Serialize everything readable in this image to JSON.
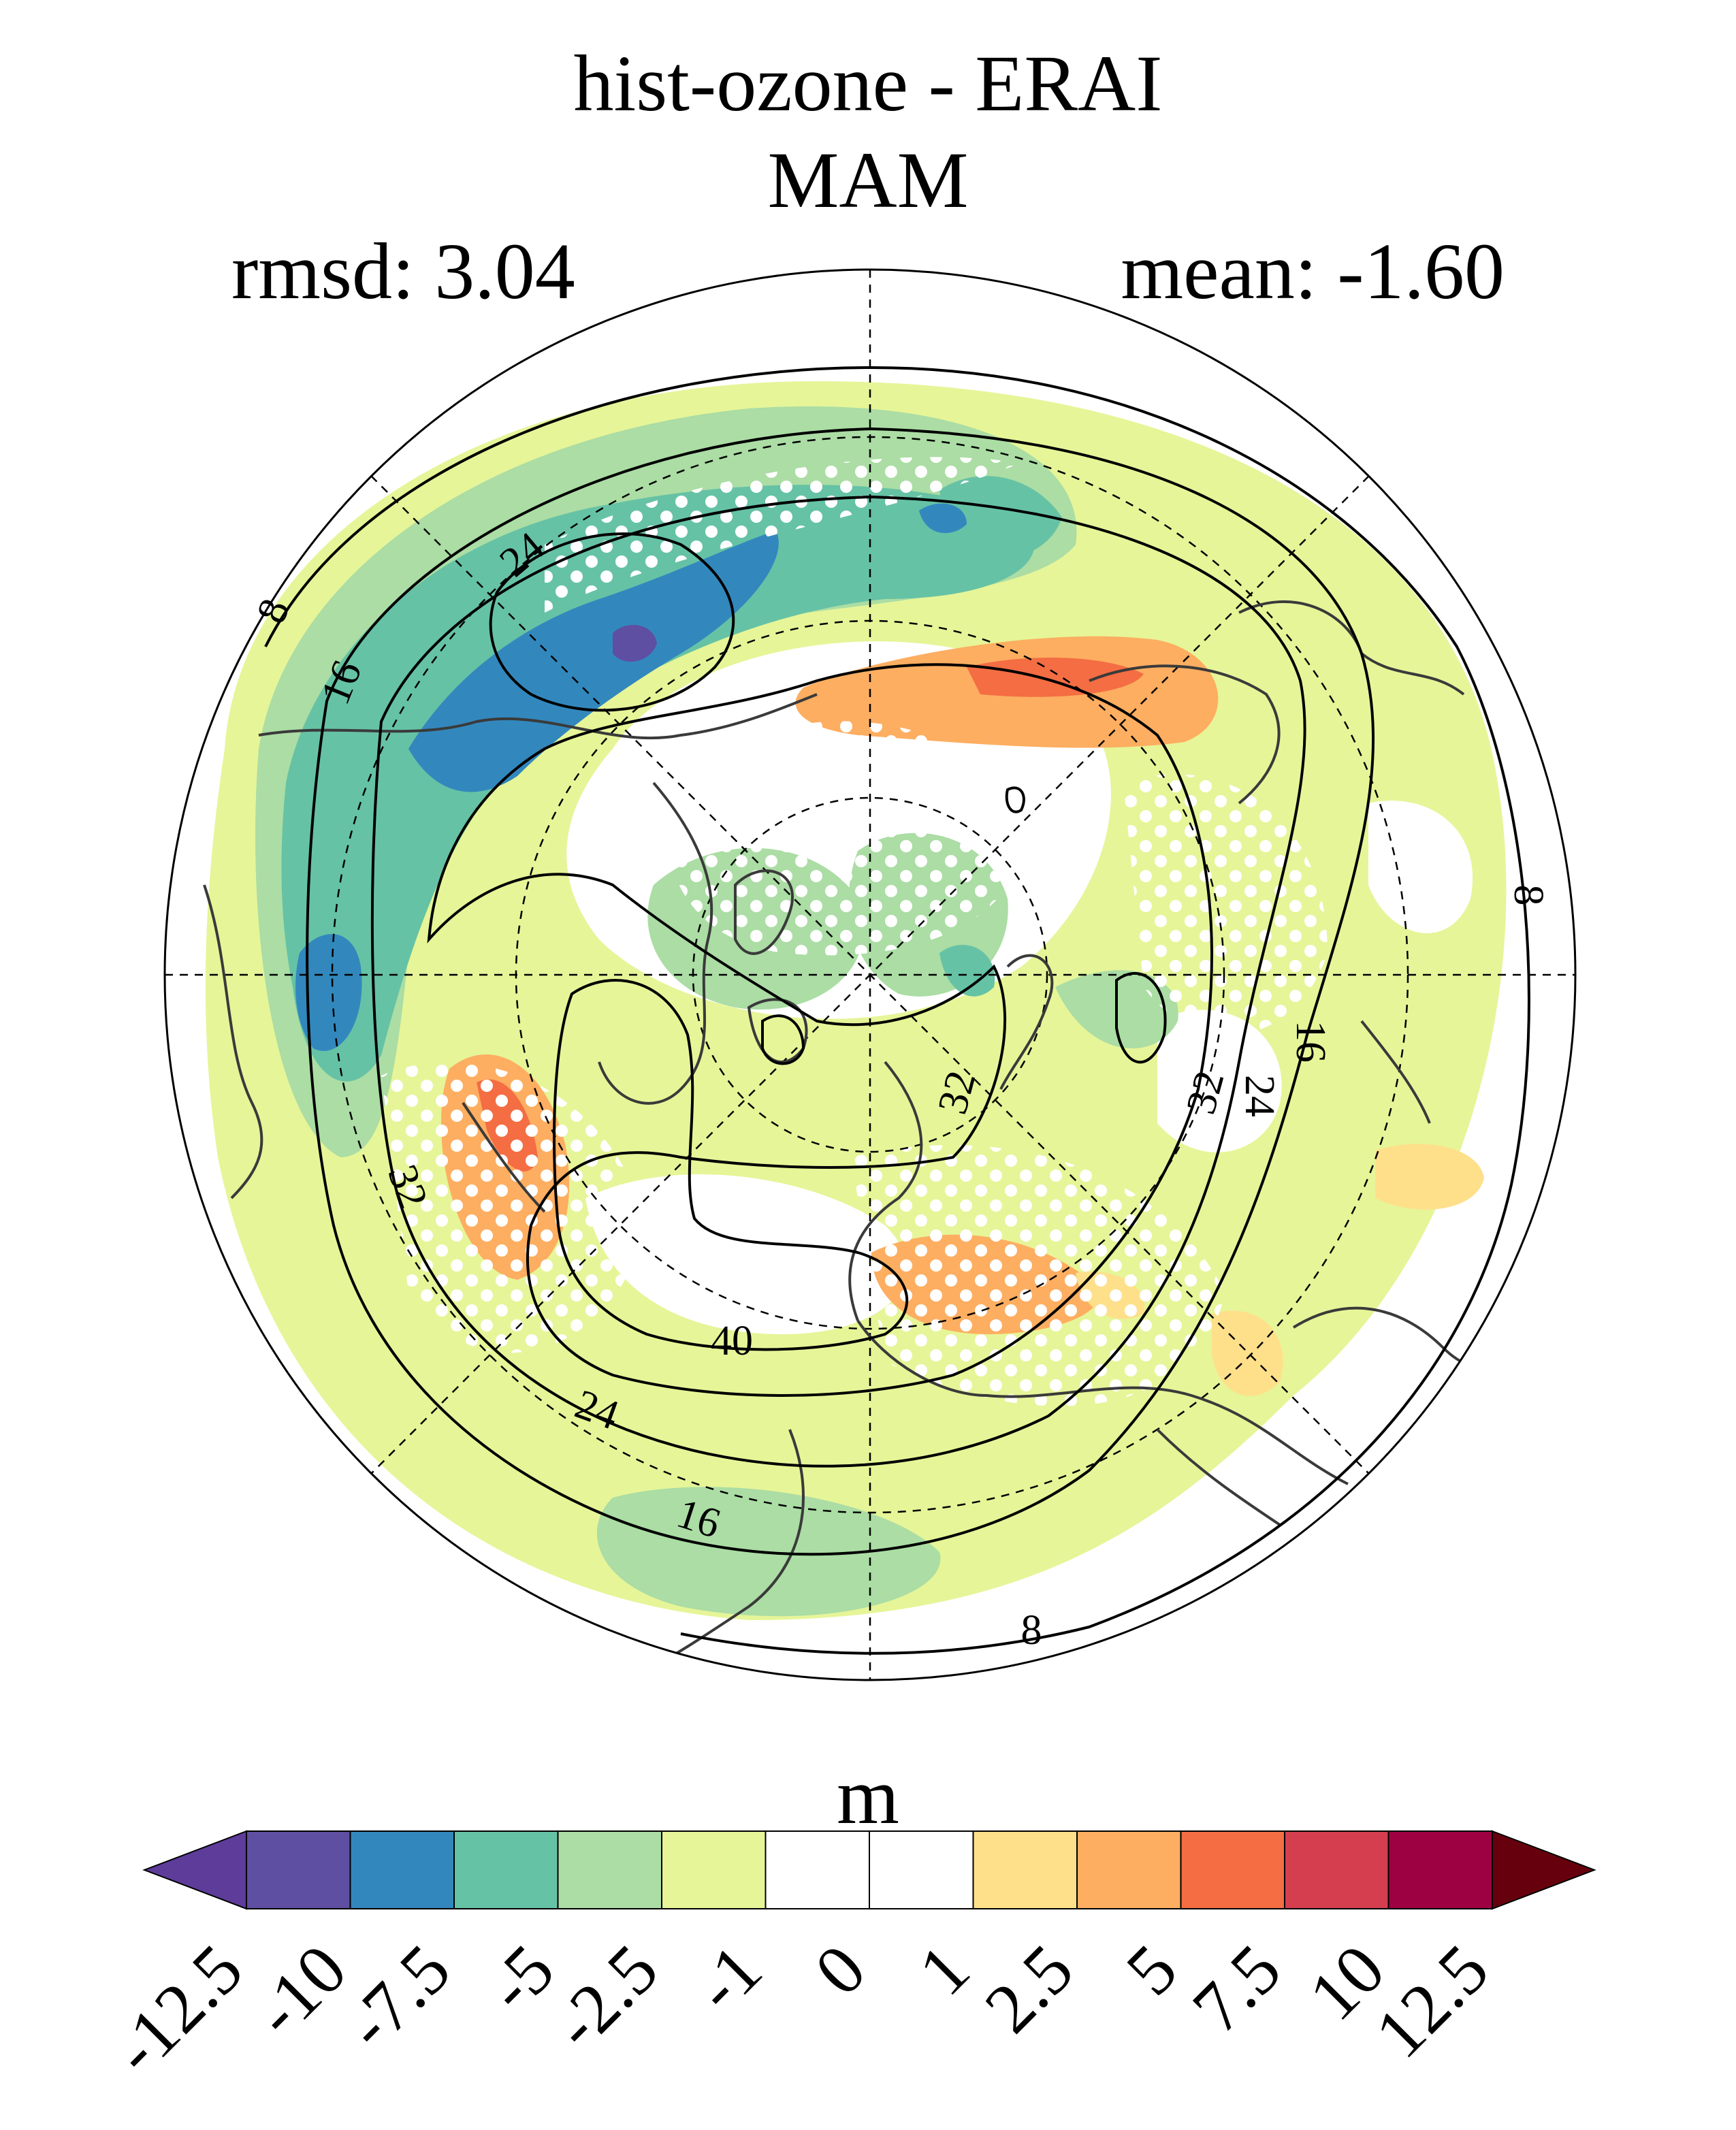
{
  "figure": {
    "title": "hist-ozone - ERAI",
    "season": "MAM",
    "rmsd_label": "rmsd: 3.04",
    "mean_label": "mean: -1.60",
    "rmsd": 3.04,
    "mean": -1.6
  },
  "map": {
    "projection": "north-polar-stereographic",
    "coastlines": true,
    "graticule": "dashed",
    "stippling": "white dots (non-significant regions)",
    "contour_levels": [
      8,
      16,
      24,
      32,
      40
    ],
    "contour_labels": [
      "8",
      "16",
      "24",
      "32",
      "40"
    ]
  },
  "colorbar": {
    "unit": "m",
    "ticks": [
      "-12.5",
      "-10",
      "-7.5",
      "-5",
      "-2.5",
      "-1",
      "0",
      "1",
      "2.5",
      "5",
      "7.5",
      "10",
      "12.5"
    ],
    "colors": [
      "#5e4fa2",
      "#3288bd",
      "#66c2a5",
      "#abdda4",
      "#e6f598",
      "#ffffff",
      "#ffffff",
      "#fee08b",
      "#fdae61",
      "#f46d43",
      "#d53e4f",
      "#9e0142"
    ],
    "extend_low_color": "#5e3c99",
    "extend_high_color": "#67000d"
  }
}
